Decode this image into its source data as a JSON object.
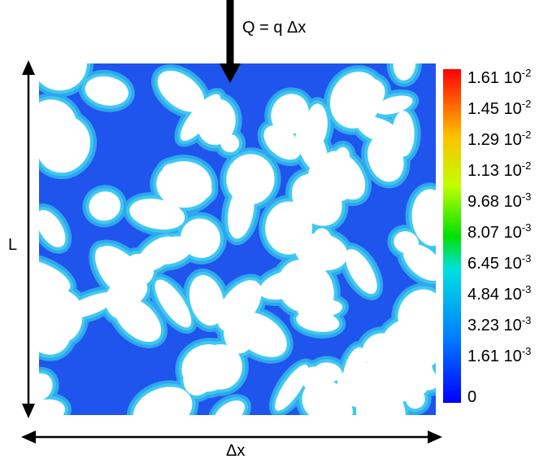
{
  "figure": {
    "inflow_label": "Q = q Δx",
    "height_label": "L",
    "width_label": "Δx",
    "colorbar": {
      "labels": [
        {
          "mantissa": "1.61",
          "exponent": "-2"
        },
        {
          "mantissa": "1.45",
          "exponent": "-2"
        },
        {
          "mantissa": "1.29",
          "exponent": "-2"
        },
        {
          "mantissa": "1.13",
          "exponent": "-2"
        },
        {
          "mantissa": "9.68",
          "exponent": "-3"
        },
        {
          "mantissa": "8.07",
          "exponent": "-3"
        },
        {
          "mantissa": "6.45",
          "exponent": "-3"
        },
        {
          "mantissa": "4.84",
          "exponent": "-3"
        },
        {
          "mantissa": "3.23",
          "exponent": "-3"
        },
        {
          "mantissa": "1.61",
          "exponent": "-3"
        },
        {
          "mantissa": "0"
        }
      ]
    }
  }
}
